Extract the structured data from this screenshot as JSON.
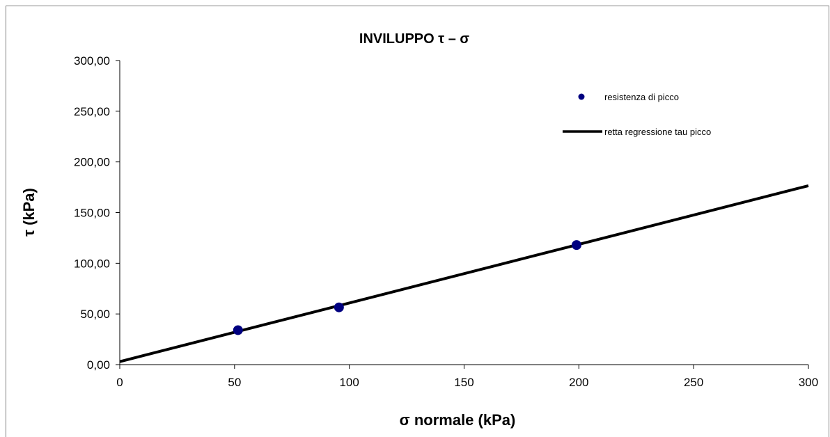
{
  "chart_data": {
    "type": "scatter",
    "title": "INVILUPPO τ – σ",
    "xlabel": "σ normale (kPa)",
    "ylabel": "τ (kPa)",
    "xlim": [
      0,
      300
    ],
    "ylim": [
      0,
      300
    ],
    "x_ticks": [
      "0",
      "50",
      "100",
      "150",
      "200",
      "250",
      "300"
    ],
    "y_ticks": [
      "0,00",
      "50,00",
      "100,00",
      "150,00",
      "200,00",
      "250,00",
      "300,00"
    ],
    "grid": false,
    "legend_position": "top-right",
    "series": [
      {
        "name": "resistenza di picco",
        "kind": "scatter",
        "color": "#000080",
        "points": [
          [
            51.5,
            34.0
          ],
          [
            95.5,
            56.5
          ],
          [
            199.0,
            118.0
          ]
        ]
      },
      {
        "name": "retta regressione tau picco",
        "kind": "line",
        "color": "#000000",
        "points": [
          [
            0,
            3.0
          ],
          [
            300,
            176.5
          ]
        ]
      }
    ]
  }
}
